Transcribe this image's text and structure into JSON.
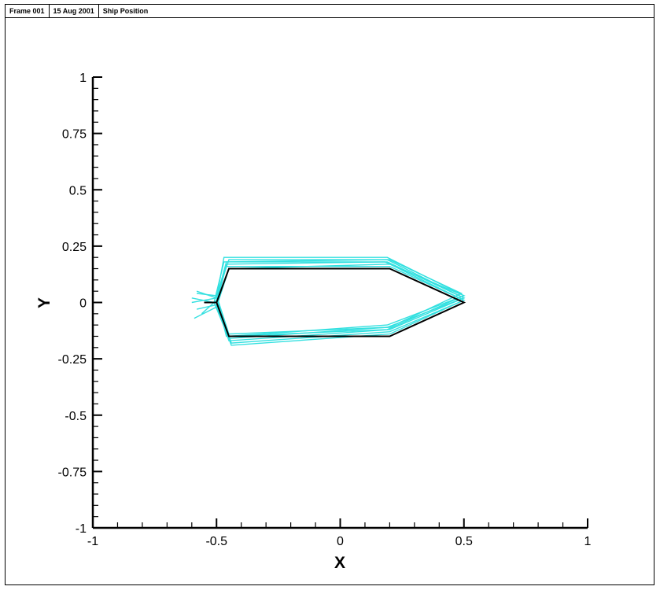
{
  "header": {
    "frame": "Frame 001",
    "date": "15 Aug 2001",
    "title": "Ship Position"
  },
  "chart_data": {
    "type": "line",
    "title": "Ship Position",
    "xlabel": "X",
    "ylabel": "Y",
    "xlim": [
      -1,
      1
    ],
    "ylim": [
      -1,
      1
    ],
    "x_ticks": [
      -1,
      -0.5,
      0,
      0.5,
      1
    ],
    "x_tick_labels": [
      "-1",
      "-0.5",
      "0",
      "0.5",
      "1"
    ],
    "y_ticks": [
      -1,
      -0.75,
      -0.5,
      -0.25,
      0,
      0.25,
      0.5,
      0.75,
      1
    ],
    "y_tick_labels": [
      "-1",
      "-0.75",
      "-0.5",
      "-0.25",
      "0",
      "0.25",
      "0.5",
      "0.75",
      "1"
    ],
    "grid": false,
    "colors": {
      "history": "#33e0e0",
      "current": "#000000"
    },
    "series": [
      {
        "x": [
          -0.5,
          -0.45,
          0.2,
          0.5,
          0.2,
          -0.45,
          -0.5,
          -0.55
        ],
        "y": [
          0,
          0.15,
          0.15,
          0,
          -0.15,
          -0.15,
          0,
          0
        ]
      },
      {
        "x": [
          -0.5,
          -0.47,
          0.19,
          0.5,
          0.19,
          -0.45,
          -0.5,
          -0.58
        ],
        "y": [
          0.02,
          0.2,
          0.2,
          0.03,
          -0.1,
          -0.15,
          0.02,
          0.05
        ]
      },
      {
        "x": [
          -0.51,
          -0.47,
          0.19,
          0.5,
          0.19,
          -0.45,
          -0.51,
          -0.6
        ],
        "y": [
          0.0,
          0.18,
          0.19,
          0.02,
          -0.11,
          -0.16,
          0.0,
          0.02
        ]
      },
      {
        "x": [
          -0.5,
          -0.46,
          0.19,
          0.5,
          0.2,
          -0.45,
          -0.5,
          -0.58
        ],
        "y": [
          -0.01,
          0.17,
          0.18,
          0.02,
          -0.12,
          -0.17,
          -0.01,
          -0.03
        ]
      },
      {
        "x": [
          -0.5,
          -0.46,
          0.2,
          0.5,
          0.2,
          -0.44,
          -0.5,
          -0.56
        ],
        "y": [
          0.01,
          0.16,
          0.16,
          0.01,
          -0.13,
          -0.18,
          0.01,
          -0.05
        ]
      },
      {
        "x": [
          -0.5,
          -0.45,
          0.2,
          0.5,
          0.2,
          -0.44,
          -0.5,
          -0.59
        ],
        "y": [
          -0.02,
          0.15,
          0.17,
          0.01,
          -0.14,
          -0.19,
          -0.02,
          -0.07
        ]
      },
      {
        "x": [
          -0.5,
          -0.45,
          0.2,
          0.49,
          0.2,
          -0.45,
          -0.5,
          -0.58
        ],
        "y": [
          0.03,
          0.19,
          0.19,
          0.04,
          -0.11,
          -0.14,
          0.03,
          0.04
        ]
      },
      {
        "x": [
          -0.5,
          -0.46,
          0.18,
          0.5,
          0.19,
          -0.46,
          -0.5,
          -0.6
        ],
        "y": [
          0.02,
          0.18,
          0.18,
          0.03,
          -0.12,
          -0.15,
          0.02,
          0.0
        ]
      },
      {
        "x": [
          -0.5,
          -0.45,
          0.2,
          0.5,
          0.2,
          -0.45,
          -0.5,
          -0.55
        ],
        "y": [
          0,
          0.15,
          0.15,
          0,
          -0.15,
          -0.15,
          0,
          0
        ]
      }
    ]
  }
}
